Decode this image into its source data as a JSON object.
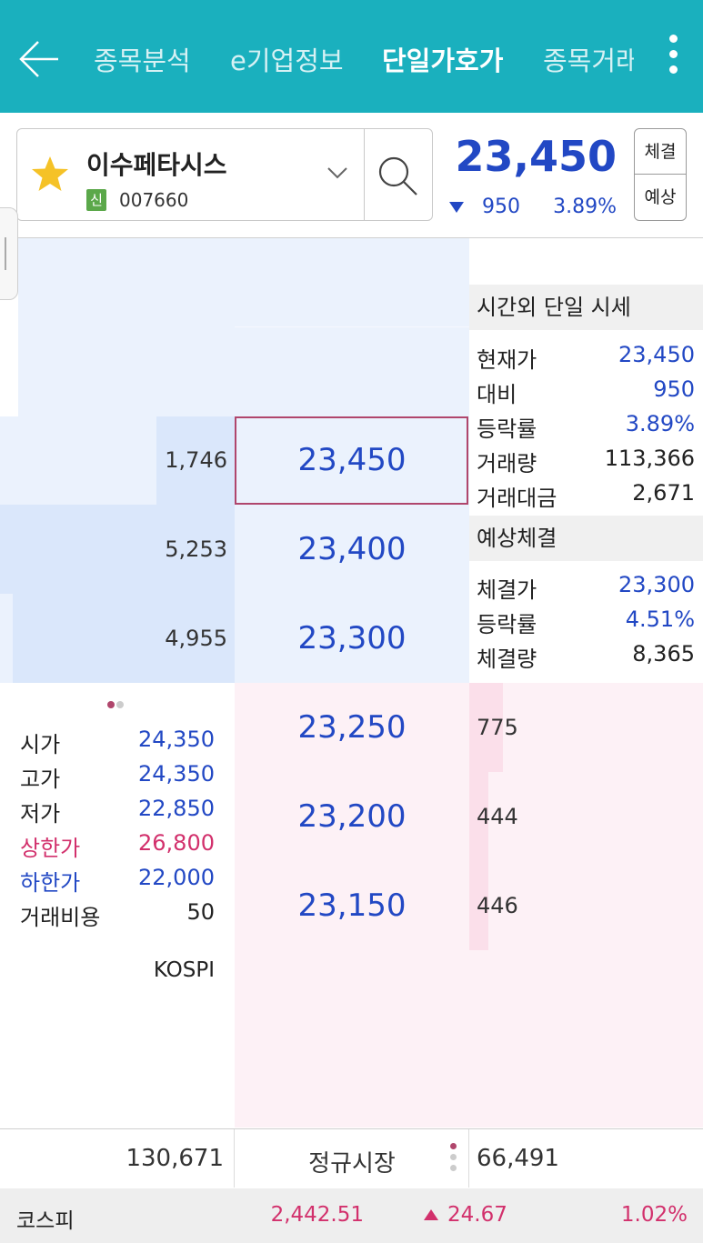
{
  "topbar": {
    "tabs": [
      "종목분석",
      "e기업정보",
      "단일가호가",
      "종목거래"
    ],
    "active_tab": "단일가호가"
  },
  "stock": {
    "name": "이수페타시스",
    "badge": "신",
    "code": "007660",
    "price": "23,450",
    "change": "950",
    "rate": "3.89%",
    "direction": "down",
    "btn_execution": "체결",
    "btn_expected": "예상"
  },
  "orderbook": {
    "asks": [
      {
        "qty": "1,746",
        "price": "23,450"
      },
      {
        "qty": "5,253",
        "price": "23,400"
      },
      {
        "qty": "4,955",
        "price": "23,300"
      }
    ],
    "bids": [
      {
        "price": "23,250",
        "qty": "775"
      },
      {
        "price": "23,200",
        "qty": "444"
      },
      {
        "price": "23,150",
        "qty": "446"
      }
    ]
  },
  "after_hours": {
    "title": "시간외 단일 시세",
    "rows": [
      {
        "label": "현재가",
        "value": "23,450"
      },
      {
        "label": "대비",
        "value": "950"
      },
      {
        "label": "등락률",
        "value": "3.89%"
      },
      {
        "label": "거래량",
        "value": "113,366"
      },
      {
        "label": "거래대금",
        "value": "2,671"
      }
    ]
  },
  "expected": {
    "title": "예상체결",
    "rows": [
      {
        "label": "체결가",
        "value": "23,300"
      },
      {
        "label": "등락률",
        "value": "4.51%"
      },
      {
        "label": "체결량",
        "value": "8,365"
      }
    ]
  },
  "summary": {
    "rows": [
      {
        "label": "시가",
        "value": "24,350"
      },
      {
        "label": "고가",
        "value": "24,350"
      },
      {
        "label": "저가",
        "value": "22,850"
      },
      {
        "label": "상한가",
        "value": "26,800"
      },
      {
        "label": "하한가",
        "value": "22,000"
      },
      {
        "label": "거래비용",
        "value": "50"
      }
    ],
    "market": "KOSPI"
  },
  "totals": {
    "ask_total": "130,671",
    "session": "정규시장",
    "bid_total": "66,491"
  },
  "index": {
    "name": "코스피",
    "value": "2,442.51",
    "change": "24.67",
    "rate": "1.02%"
  },
  "colors": {
    "header": "#1ab0be",
    "blue": "#2248c4",
    "red": "#d2306c",
    "ask_bg": "#ebf2fd",
    "bid_bg": "#fdf1f6"
  }
}
